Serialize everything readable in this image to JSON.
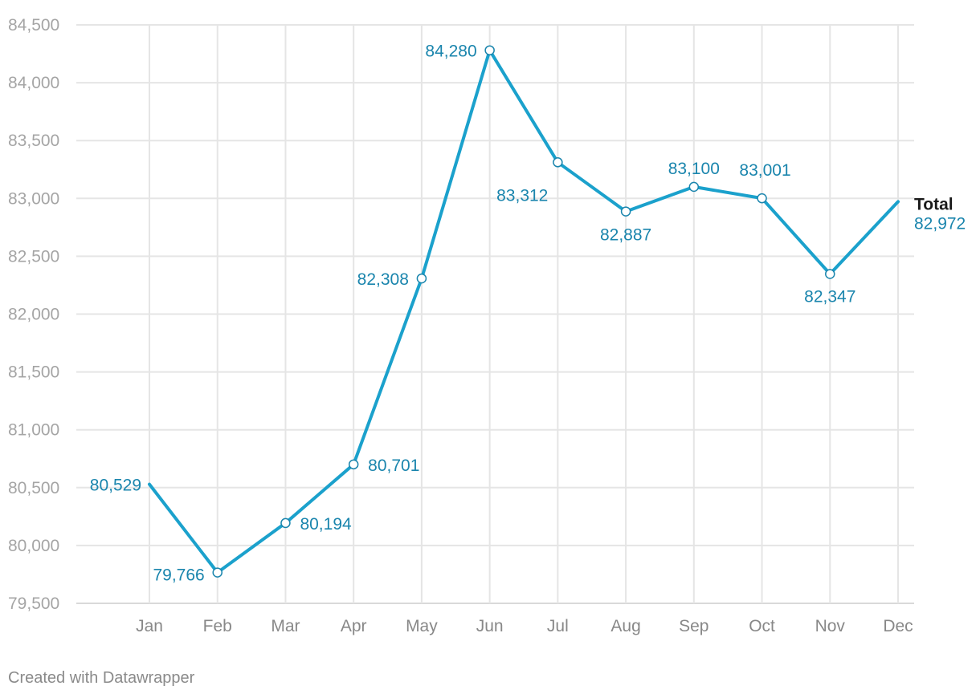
{
  "chart_data": {
    "type": "line",
    "title": "",
    "xlabel": "",
    "ylabel": "",
    "categories": [
      "Jan",
      "Feb",
      "Mar",
      "Apr",
      "May",
      "Jun",
      "Jul",
      "Aug",
      "Sep",
      "Oct",
      "Nov",
      "Dec"
    ],
    "ylim": [
      79500,
      84500
    ],
    "yticks": [
      79500,
      80000,
      80500,
      81000,
      81500,
      82000,
      82500,
      83000,
      83500,
      84000,
      84500
    ],
    "grid": true,
    "series": [
      {
        "name": "Total",
        "color": "#1ba1cc",
        "label_color": "#1a85ad",
        "values": [
          80529,
          79766,
          80194,
          80701,
          82308,
          84280,
          83312,
          82887,
          83100,
          83001,
          82347,
          82972
        ],
        "value_labels": [
          "80,529",
          "79,766",
          "80,194",
          "80,701",
          "82,308",
          "84,280",
          "83,312",
          "82,887",
          "83,100",
          "83,001",
          "82,347",
          "82,972"
        ]
      }
    ]
  },
  "footer": {
    "credit": "Created with Datawrapper"
  }
}
